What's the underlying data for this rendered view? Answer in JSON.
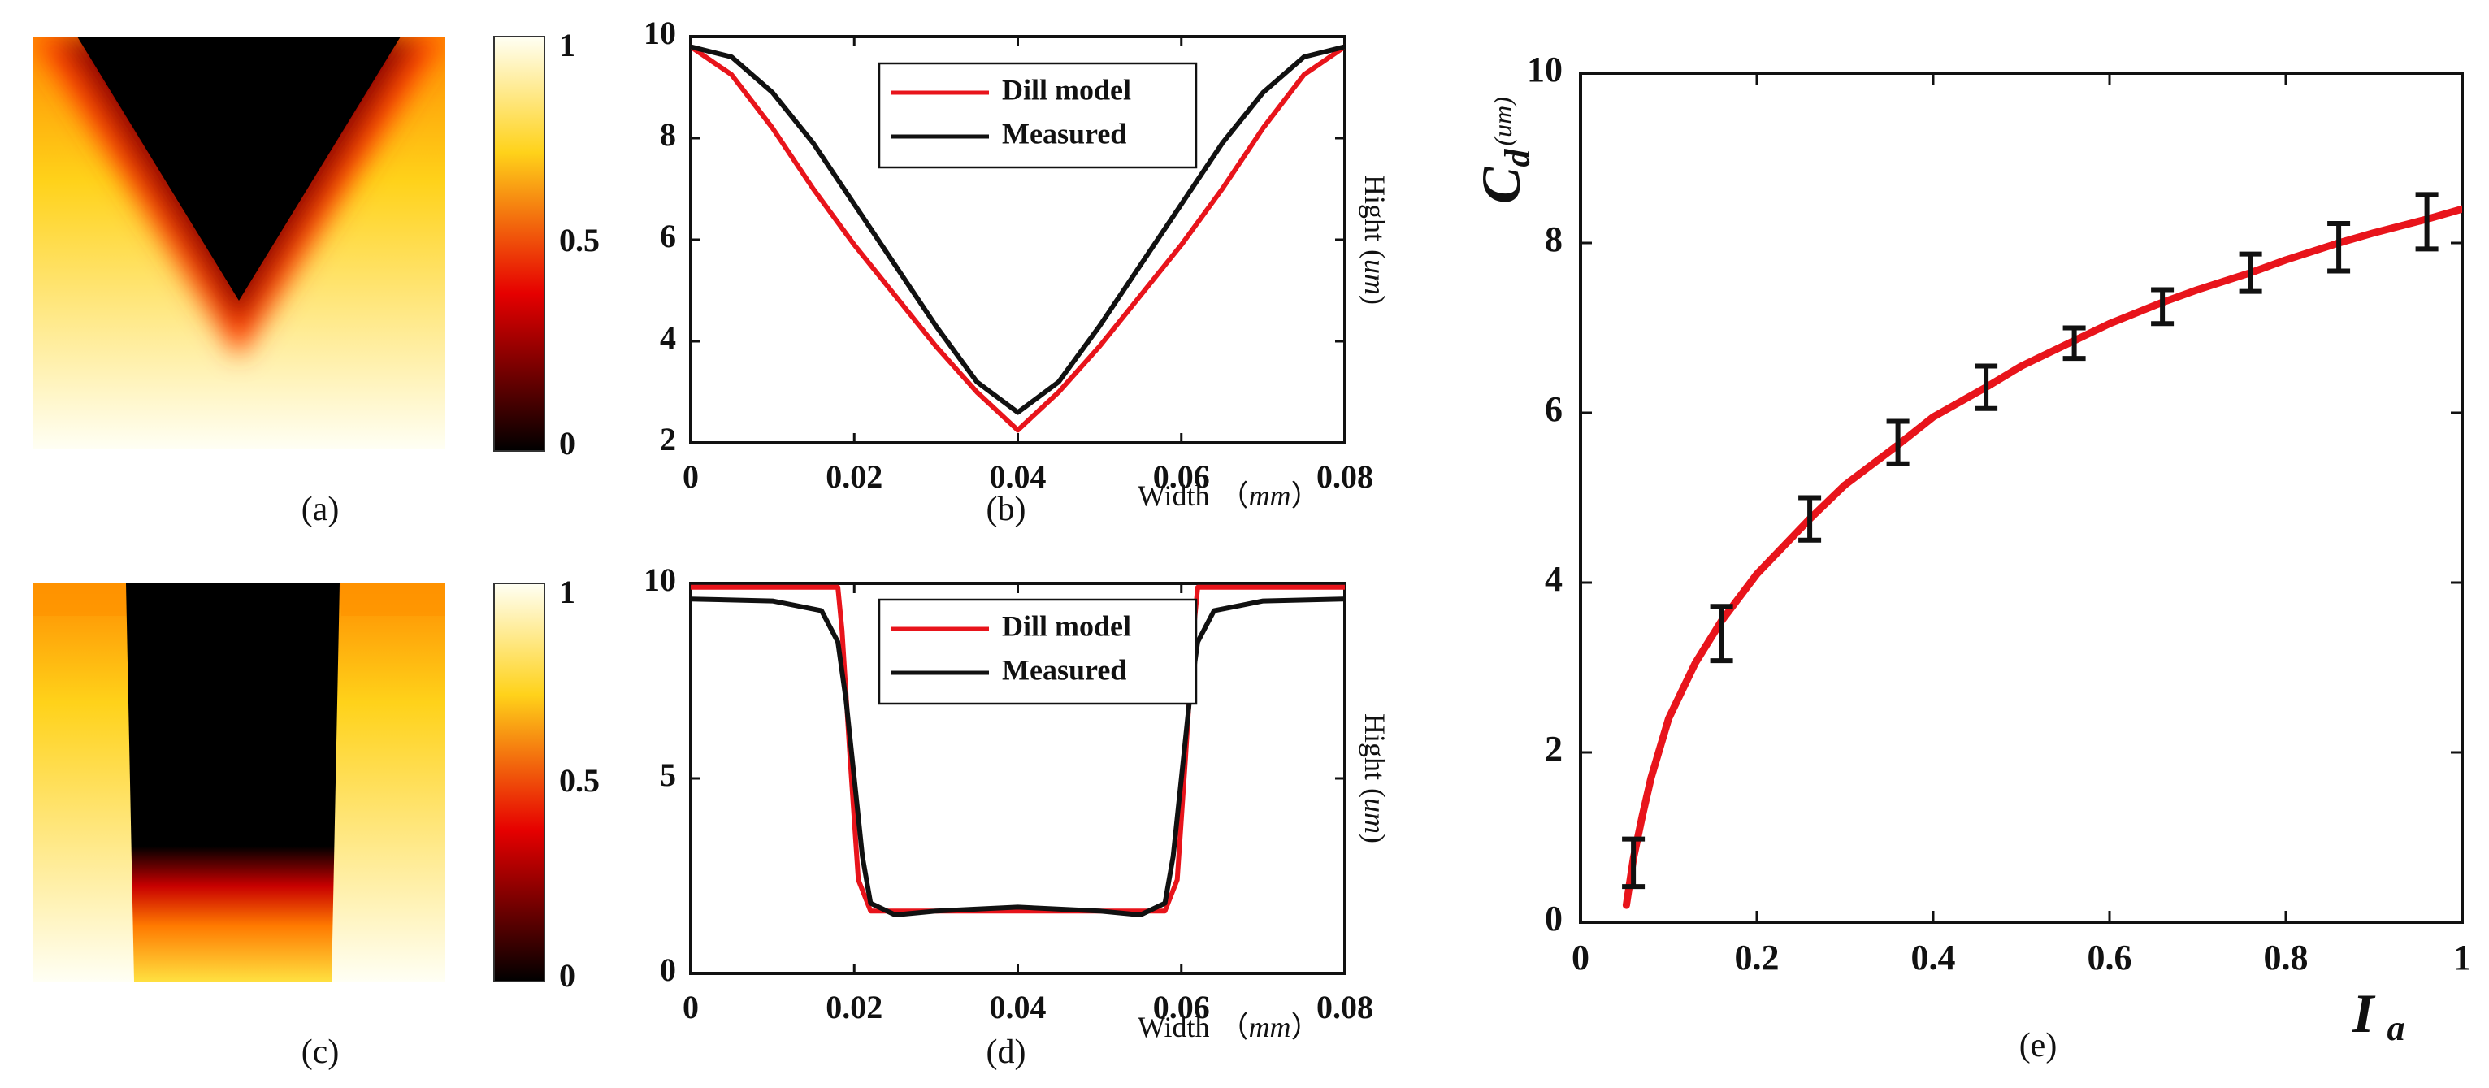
{
  "chart_data": [
    {
      "panel": "(a)",
      "type": "heatmap",
      "colormap": "hot",
      "colors": [
        "#000000",
        "#e60000",
        "#ffd21a",
        "#fffff4"
      ],
      "apex_depth_fraction": 0.75,
      "colorbar": {
        "ticks": [
          "1",
          "0.5",
          "0"
        ],
        "range": [
          0,
          1
        ]
      }
    },
    {
      "panel": "(b)",
      "type": "line",
      "xlabel_text": "Width",
      "xlabel_unit": "mm",
      "ylabel_text": "Hight",
      "ylabel_unit": "um",
      "xlim": [
        0,
        0.08
      ],
      "ylim": [
        2,
        10
      ],
      "xticks": [
        "0",
        "0.02",
        "0.04",
        "0.06",
        "0.08"
      ],
      "xtick_values": [
        0,
        0.02,
        0.04,
        0.06,
        0.08
      ],
      "yticks": [
        "10",
        "8",
        "6",
        "4",
        "2"
      ],
      "ytick_values": [
        10,
        8,
        6,
        4,
        2
      ],
      "legend_position": "top-center",
      "series": [
        {
          "name": "Dill model",
          "color": "#e8141b",
          "x": [
            0,
            0.005,
            0.01,
            0.015,
            0.02,
            0.025,
            0.03,
            0.035,
            0.04,
            0.045,
            0.05,
            0.055,
            0.06,
            0.065,
            0.07,
            0.075,
            0.08
          ],
          "y": [
            9.8,
            9.25,
            8.2,
            7.0,
            5.9,
            4.9,
            3.9,
            3.0,
            2.25,
            3.0,
            3.9,
            4.9,
            5.9,
            7.0,
            8.2,
            9.25,
            9.8
          ]
        },
        {
          "name": "Measured",
          "color": "#111111",
          "x": [
            0,
            0.005,
            0.01,
            0.015,
            0.02,
            0.025,
            0.03,
            0.035,
            0.04,
            0.045,
            0.05,
            0.055,
            0.06,
            0.065,
            0.07,
            0.075,
            0.08
          ],
          "y": [
            9.8,
            9.6,
            8.9,
            7.9,
            6.7,
            5.5,
            4.3,
            3.2,
            2.6,
            3.2,
            4.3,
            5.5,
            6.7,
            7.9,
            8.9,
            9.6,
            9.8
          ]
        }
      ]
    },
    {
      "panel": "(c)",
      "type": "heatmap",
      "colormap": "hot",
      "colors": [
        "#000000",
        "#e60000",
        "#ffd21a",
        "#fffff4"
      ],
      "colorbar": {
        "ticks": [
          "1",
          "0.5",
          "0"
        ],
        "range": [
          0,
          1
        ]
      }
    },
    {
      "panel": "(d)",
      "type": "line",
      "xlabel_text": "Width",
      "xlabel_unit": "mm",
      "ylabel_text": "Hight",
      "ylabel_unit": "um",
      "xlim": [
        0,
        0.08
      ],
      "ylim": [
        0,
        10
      ],
      "xticks": [
        "0",
        "0.02",
        "0.04",
        "0.06",
        "0.08"
      ],
      "xtick_values": [
        0,
        0.02,
        0.04,
        0.06,
        0.08
      ],
      "yticks": [
        "10",
        "5",
        "0"
      ],
      "ytick_values": [
        10,
        5,
        0
      ],
      "legend_position": "top-center",
      "series": [
        {
          "name": "Dill model",
          "color": "#e8141b",
          "x": [
            0,
            0.018,
            0.0185,
            0.0195,
            0.0205,
            0.022,
            0.03,
            0.04,
            0.05,
            0.058,
            0.0595,
            0.0605,
            0.0615,
            0.062,
            0.08
          ],
          "y": [
            9.9,
            9.9,
            8.8,
            5.5,
            2.4,
            1.6,
            1.6,
            1.6,
            1.6,
            1.6,
            2.4,
            5.5,
            8.8,
            9.9,
            9.9
          ]
        },
        {
          "name": "Measured",
          "color": "#111111",
          "x": [
            0,
            0.01,
            0.016,
            0.018,
            0.019,
            0.02,
            0.021,
            0.022,
            0.025,
            0.03,
            0.04,
            0.05,
            0.055,
            0.058,
            0.059,
            0.06,
            0.061,
            0.062,
            0.064,
            0.07,
            0.08
          ],
          "y": [
            9.6,
            9.55,
            9.3,
            8.5,
            7.0,
            5.0,
            3.0,
            1.8,
            1.5,
            1.6,
            1.7,
            1.6,
            1.5,
            1.8,
            3.0,
            5.0,
            7.0,
            8.5,
            9.3,
            9.55,
            9.6
          ]
        }
      ]
    },
    {
      "panel": "(e)",
      "type": "scatter",
      "xlabel_main": "I",
      "xlabel_sub": "a",
      "ylabel_main": "C",
      "ylabel_sub": "d",
      "ylabel_unit": "(um)",
      "xlim": [
        0,
        1
      ],
      "ylim": [
        0,
        10
      ],
      "xticks": [
        "0",
        "0.2",
        "0.4",
        "0.6",
        "0.8",
        "1"
      ],
      "xtick_values": [
        0,
        0.2,
        0.4,
        0.6,
        0.8,
        1
      ],
      "yticks": [
        "10",
        "8",
        "6",
        "4",
        "2",
        "0"
      ],
      "ytick_values": [
        10,
        8,
        6,
        4,
        2,
        0
      ],
      "points": {
        "x": [
          0.06,
          0.16,
          0.26,
          0.36,
          0.46,
          0.56,
          0.66,
          0.76,
          0.86,
          0.96
        ],
        "y": [
          0.7,
          3.4,
          4.75,
          5.65,
          6.3,
          6.82,
          7.25,
          7.65,
          7.95,
          8.25
        ],
        "err": [
          0.28,
          0.32,
          0.25,
          0.25,
          0.25,
          0.18,
          0.2,
          0.22,
          0.28,
          0.32
        ],
        "color": "#111111"
      },
      "fit": {
        "color": "#e8141b",
        "x": [
          0.052,
          0.06,
          0.07,
          0.08,
          0.1,
          0.13,
          0.16,
          0.2,
          0.26,
          0.3,
          0.36,
          0.4,
          0.46,
          0.5,
          0.56,
          0.6,
          0.66,
          0.7,
          0.76,
          0.8,
          0.86,
          0.9,
          0.96,
          1.0
        ],
        "y": [
          0.2,
          0.75,
          1.25,
          1.7,
          2.4,
          3.05,
          3.55,
          4.1,
          4.75,
          5.15,
          5.62,
          5.95,
          6.3,
          6.55,
          6.85,
          7.05,
          7.3,
          7.45,
          7.65,
          7.8,
          8.0,
          8.12,
          8.28,
          8.4
        ]
      }
    }
  ]
}
